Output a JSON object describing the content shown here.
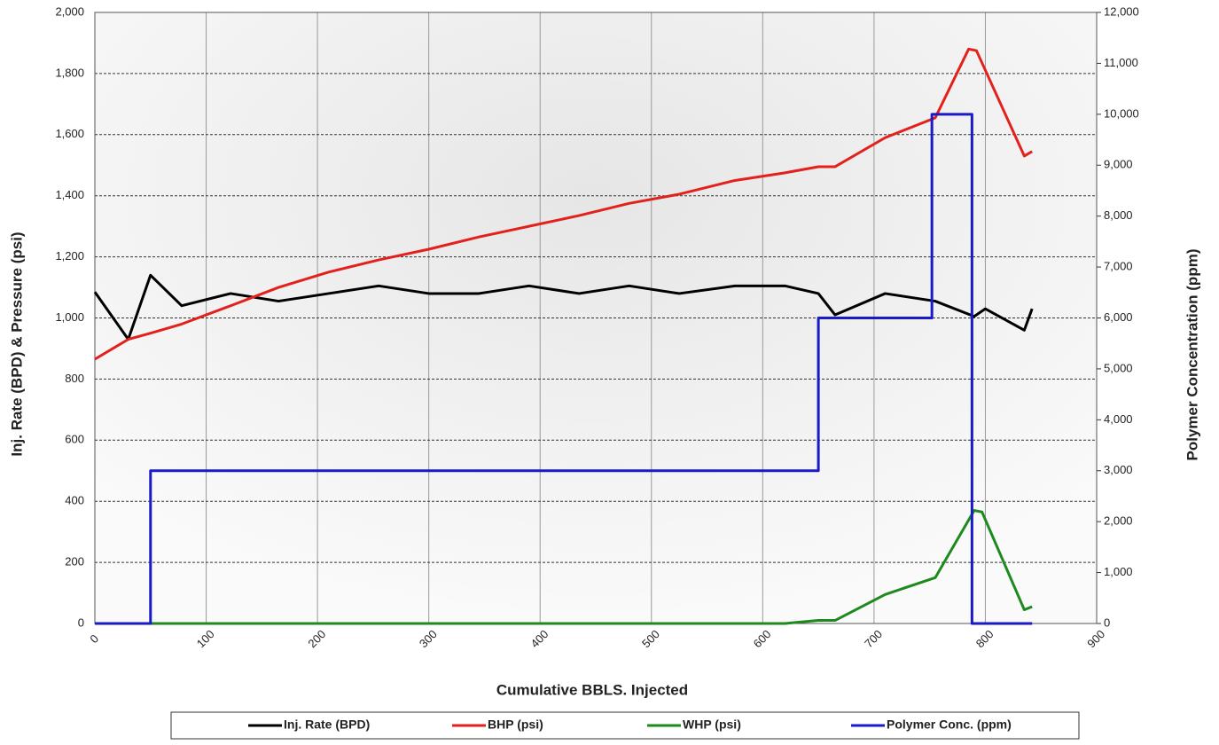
{
  "chart_data": {
    "type": "line",
    "x_label": "Cumulative BBLS. Injected",
    "y_label": "Inj. Rate (BPD) & Pressure (psi)",
    "y2_label": "Polymer Concentration (ppm)",
    "xlim": [
      0,
      900
    ],
    "xticks": [
      0,
      100,
      200,
      300,
      400,
      500,
      600,
      700,
      800,
      900
    ],
    "ylim": [
      0,
      2000
    ],
    "yticks": [
      0,
      200,
      400,
      600,
      800,
      {
        "value": 1000,
        "label": "1,000"
      },
      {
        "value": 1200,
        "label": "1,200"
      },
      {
        "value": 1400,
        "label": "1,400"
      },
      {
        "value": 1600,
        "label": "1,600"
      },
      {
        "value": 1800,
        "label": "1,800"
      },
      {
        "value": 2000,
        "label": "2,000"
      }
    ],
    "y2lim": [
      0,
      12000
    ],
    "y2ticks": [
      0,
      {
        "value": 1000,
        "label": "1,000"
      },
      {
        "value": 2000,
        "label": "2,000"
      },
      {
        "value": 3000,
        "label": "3,000"
      },
      {
        "value": 4000,
        "label": "4,000"
      },
      {
        "value": 5000,
        "label": "5,000"
      },
      {
        "value": 6000,
        "label": "6,000"
      },
      {
        "value": 7000,
        "label": "7,000"
      },
      {
        "value": 8000,
        "label": "8,000"
      },
      {
        "value": 9000,
        "label": "9,000"
      },
      {
        "value": 10000,
        "label": "10,000"
      },
      {
        "value": 11000,
        "label": "11,000"
      },
      {
        "value": 12000,
        "label": "12,000"
      }
    ],
    "grid": true,
    "legend": "bottom",
    "series": [
      {
        "name": "Inj. Rate (BPD)",
        "color": "#000000",
        "x": [
          0,
          30,
          50,
          78,
          122,
          165,
          210,
          255,
          300,
          345,
          390,
          435,
          480,
          525,
          575,
          620,
          650,
          665,
          710,
          755,
          790,
          800,
          835,
          842
        ],
        "values": [
          1085,
          930,
          1140,
          1040,
          1080,
          1055,
          1080,
          1105,
          1080,
          1080,
          1105,
          1080,
          1105,
          1080,
          1105,
          1105,
          1080,
          1010,
          1080,
          1055,
          1005,
          1030,
          960,
          1030
        ]
      },
      {
        "name": "BHP (psi)",
        "color": "#e3211c",
        "x": [
          0,
          30,
          50,
          78,
          122,
          165,
          210,
          255,
          300,
          345,
          390,
          435,
          480,
          525,
          575,
          620,
          650,
          665,
          710,
          755,
          785,
          792,
          835,
          842
        ],
        "values": [
          865,
          930,
          950,
          980,
          1040,
          1100,
          1150,
          1190,
          1225,
          1265,
          1300,
          1335,
          1375,
          1405,
          1450,
          1475,
          1495,
          1495,
          1590,
          1655,
          1880,
          1875,
          1530,
          1545
        ]
      },
      {
        "name": "WHP (psi)",
        "color": "#1e8a1e",
        "x": [
          0,
          620,
          650,
          665,
          710,
          755,
          790,
          797,
          835,
          842
        ],
        "values": [
          0,
          0,
          10,
          10,
          95,
          150,
          370,
          365,
          45,
          55
        ]
      },
      {
        "name": "Polymer Conc. (ppm)",
        "color": "#1a1ac8",
        "axis": "y2",
        "x": [
          0,
          50,
          50,
          650,
          650,
          752,
          752,
          788,
          788,
          842
        ],
        "values": [
          0,
          0,
          3000,
          3000,
          6000,
          6000,
          10000,
          10000,
          0,
          0
        ]
      }
    ]
  }
}
